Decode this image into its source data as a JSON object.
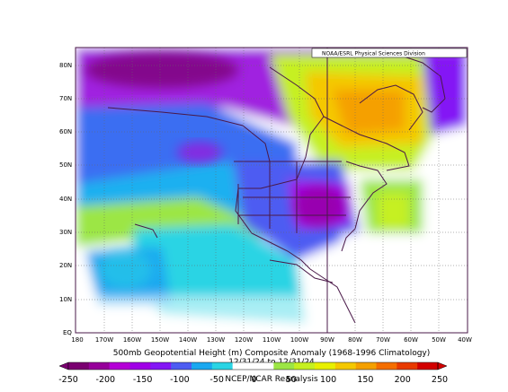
{
  "map": {
    "credit": "NOAA/ESRL Physical Sciences Division",
    "lat_labels": [
      "80N",
      "70N",
      "60N",
      "50N",
      "40N",
      "30N",
      "20N",
      "10N",
      "EQ"
    ],
    "lon_labels": [
      "180",
      "170W",
      "160W",
      "150W",
      "140W",
      "130W",
      "120W",
      "110W",
      "100W",
      "90W",
      "80W",
      "70W",
      "60W",
      "50W",
      "40W"
    ],
    "title": "500mb Geopotential Height (m) Composite Anomaly (1968-1996 Climatology)",
    "subtitle": "12/31/24 to 12/31/24",
    "subtitle2": "NCEP/NCAR Reanalysis",
    "colorbar_ticks": [
      "-250",
      "-200",
      "-150",
      "-100",
      "-50",
      "0",
      "50",
      "100",
      "150",
      "200",
      "250"
    ],
    "colorbar_colors": [
      "#7a0070",
      "#96009a",
      "#b400d6",
      "#a000e6",
      "#8416f5",
      "#4d5cf2",
      "#1aa8f0",
      "#2ad4e4",
      "#ffffff",
      "#ffffff",
      "#9ce645",
      "#c6f020",
      "#e8f000",
      "#f5c800",
      "#f5a000",
      "#f56e00",
      "#e83a00",
      "#d20000"
    ]
  }
}
